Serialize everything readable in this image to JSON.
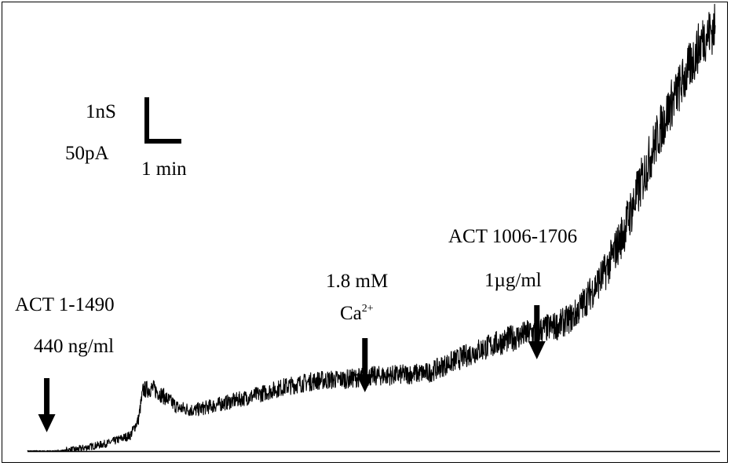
{
  "chart_data": {
    "type": "line",
    "title": "",
    "xlabel": "",
    "ylabel": "",
    "x_unit": "min",
    "xlim": [
      0,
      21.5
    ],
    "ylim": [
      0,
      540
    ],
    "scale_bar": {
      "vertical_labels": [
        "1nS",
        "50pA"
      ],
      "horizontal_label": "1 min",
      "x_minutes": 1,
      "y_value": 1
    },
    "series": [
      {
        "points": [
          [
            0,
            0
          ],
          [
            0.8,
            0
          ],
          [
            1.5,
            2
          ],
          [
            2.5,
            10
          ],
          [
            3.2,
            20
          ],
          [
            3.45,
            40
          ],
          [
            3.6,
            78
          ],
          [
            3.9,
            80
          ],
          [
            4.3,
            68
          ],
          [
            4.7,
            55
          ],
          [
            5.2,
            52
          ],
          [
            6,
            60
          ],
          [
            7,
            70
          ],
          [
            8,
            82
          ],
          [
            9,
            90
          ],
          [
            10,
            92
          ],
          [
            10.5,
            95
          ],
          [
            11.5,
            97
          ],
          [
            12.5,
            100
          ],
          [
            13,
            110
          ],
          [
            14,
            128
          ],
          [
            15,
            143
          ],
          [
            16,
            155
          ],
          [
            16.5,
            160
          ],
          [
            17,
            172
          ],
          [
            17.5,
            200
          ],
          [
            18,
            230
          ],
          [
            18.5,
            275
          ],
          [
            19,
            330
          ],
          [
            19.5,
            390
          ],
          [
            20,
            440
          ],
          [
            20.5,
            480
          ],
          [
            21,
            525
          ],
          [
            21.4,
            540
          ]
        ]
      }
    ],
    "annotations": [
      {
        "lines": [
          "ACT 1-1490",
          "440 ng/ml"
        ],
        "arrow_x": 0.6
      },
      {
        "lines": [
          "1.8 mM",
          "Ca"
        ],
        "superscript": "2+",
        "arrow_x": 10.5
      },
      {
        "lines": [
          "ACT 1006-1706",
          "1µg/ml"
        ],
        "arrow_x": 15.85
      }
    ]
  }
}
